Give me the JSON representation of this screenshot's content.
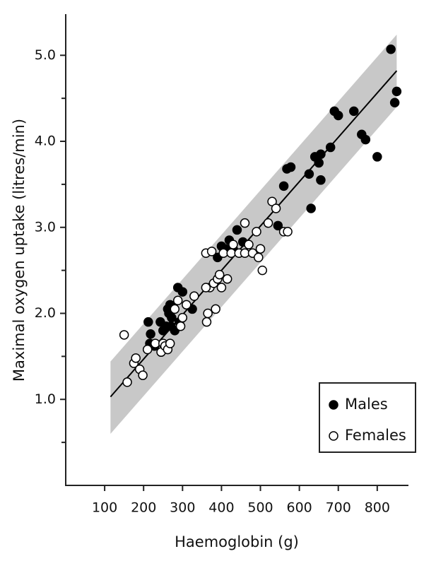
{
  "chart_data": {
    "type": "scatter",
    "x_label": "Haemoglobin (g)",
    "y_label": "Maximal oxygen uptake (litres/min)",
    "xlim": [
      0,
      870
    ],
    "ylim": [
      0,
      5.5
    ],
    "xticks": [
      100,
      200,
      300,
      400,
      500,
      600,
      700,
      800
    ],
    "yticks": [
      {
        "value": 1,
        "label": "1.0"
      },
      {
        "value": 2,
        "label": "2.0"
      },
      {
        "value": 3,
        "label": "3.0"
      },
      {
        "value": 4,
        "label": "4.0"
      },
      {
        "value": 5,
        "label": "5.0"
      }
    ],
    "yminorticks": [
      0.5,
      1.5,
      2.5,
      3.5,
      4.5
    ],
    "legend": "lower right",
    "band": {
      "color": "#c8c8c8",
      "x": [
        115,
        850
      ],
      "upper": [
        1.44,
        5.24
      ],
      "lower": [
        0.6,
        4.4
      ]
    },
    "fit_line": {
      "color": "#000000",
      "x": [
        115,
        850
      ],
      "y": [
        1.03,
        4.82
      ]
    },
    "series": [
      {
        "name": "Males",
        "color": "#000000",
        "edgecolor": "#000000",
        "x": [
          212,
          218,
          216,
          228,
          243,
          250,
          258,
          262,
          268,
          272,
          280,
          288,
          300,
          292,
          325,
          390,
          400,
          410,
          420,
          430,
          440,
          455,
          545,
          560,
          568,
          578,
          625,
          630,
          640,
          650,
          655,
          655,
          680,
          690,
          700,
          740,
          760,
          770,
          800,
          835,
          845,
          850,
          265,
          270
        ],
        "y": [
          1.9,
          1.76,
          1.65,
          1.62,
          1.9,
          1.8,
          1.85,
          2.05,
          2.1,
          1.95,
          1.8,
          2.3,
          2.25,
          1.9,
          2.05,
          2.65,
          2.78,
          2.75,
          2.85,
          2.75,
          2.97,
          2.83,
          3.02,
          3.48,
          3.68,
          3.7,
          3.62,
          3.22,
          3.82,
          3.75,
          3.85,
          3.55,
          3.93,
          4.35,
          4.3,
          4.35,
          4.08,
          4.02,
          3.82,
          5.07,
          4.45,
          4.58,
          2.0,
          1.85
        ]
      },
      {
        "name": "Females",
        "color": "#ffffff",
        "edgecolor": "#000000",
        "x": [
          150,
          158,
          175,
          180,
          190,
          198,
          210,
          230,
          245,
          250,
          255,
          262,
          268,
          280,
          288,
          300,
          295,
          310,
          330,
          360,
          362,
          365,
          370,
          375,
          380,
          385,
          390,
          395,
          400,
          405,
          415,
          425,
          430,
          445,
          460,
          460,
          470,
          480,
          490,
          495,
          500,
          505,
          520,
          530,
          540,
          560,
          570,
          360
        ],
        "y": [
          1.75,
          1.2,
          1.42,
          1.48,
          1.35,
          1.28,
          1.58,
          1.65,
          1.55,
          1.65,
          1.62,
          1.58,
          1.65,
          2.05,
          2.15,
          1.95,
          1.85,
          2.1,
          2.2,
          2.7,
          1.9,
          2.0,
          2.3,
          2.72,
          2.35,
          2.05,
          2.4,
          2.45,
          2.3,
          2.7,
          2.4,
          2.7,
          2.8,
          2.7,
          3.05,
          2.7,
          2.8,
          2.7,
          2.95,
          2.65,
          2.75,
          2.5,
          3.05,
          3.3,
          3.22,
          2.95,
          2.95,
          2.3
        ]
      }
    ]
  }
}
